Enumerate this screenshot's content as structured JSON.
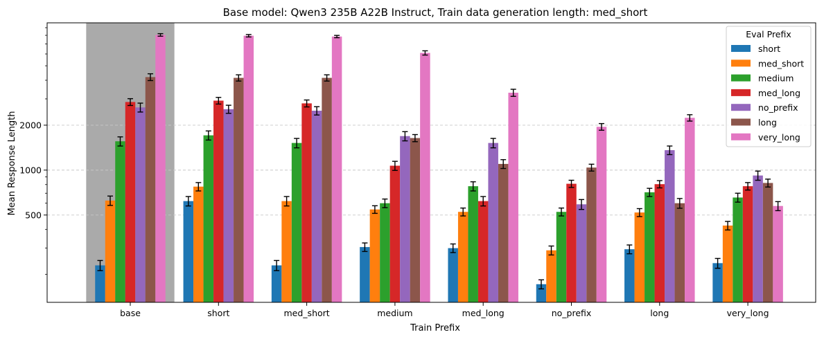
{
  "chart_data": {
    "type": "bar",
    "title": "Base model: Qwen3 235B A22B Instruct, Train data generation length: med_short",
    "xlabel": "Train Prefix",
    "ylabel": "Mean Response Length",
    "yscale": "log",
    "ylim": [
      130,
      9700
    ],
    "yticks": [
      500,
      1000,
      2000
    ],
    "yticklabels": [
      "500",
      "1000",
      "2000"
    ],
    "grid": "y-dashed",
    "highlighted_category": "base",
    "categories": [
      "base",
      "short",
      "med_short",
      "medium",
      "med_long",
      "no_prefix",
      "long",
      "very_long"
    ],
    "legend": {
      "title": "Eval Prefix",
      "location": "upper right"
    },
    "series": [
      {
        "name": "short",
        "color": "#1f77b4",
        "values": [
          230,
          620,
          230,
          305,
          300,
          172,
          295,
          238
        ],
        "errors": [
          18,
          45,
          18,
          20,
          20,
          12,
          20,
          18
        ]
      },
      {
        "name": "med_short",
        "color": "#ff7f0e",
        "values": [
          625,
          775,
          620,
          545,
          525,
          290,
          520,
          425
        ],
        "errors": [
          45,
          50,
          45,
          32,
          32,
          20,
          32,
          28
        ]
      },
      {
        "name": "medium",
        "color": "#2ca02c",
        "values": [
          1560,
          1710,
          1520,
          600,
          780,
          525,
          710,
          655
        ],
        "errors": [
          110,
          120,
          110,
          40,
          55,
          32,
          45,
          45
        ]
      },
      {
        "name": "med_long",
        "color": "#d62728",
        "values": [
          2860,
          2920,
          2800,
          1070,
          620,
          810,
          805,
          780
        ],
        "errors": [
          150,
          150,
          150,
          75,
          45,
          45,
          45,
          45
        ]
      },
      {
        "name": "no_prefix",
        "color": "#9467bd",
        "values": [
          2630,
          2560,
          2500,
          1690,
          1520,
          590,
          1360,
          920
        ],
        "errors": [
          180,
          160,
          160,
          120,
          110,
          45,
          90,
          65
        ]
      },
      {
        "name": "long",
        "color": "#8c564b",
        "values": [
          4200,
          4150,
          4150,
          1640,
          1100,
          1040,
          600,
          820
        ],
        "errors": [
          220,
          200,
          200,
          90,
          75,
          55,
          45,
          50
        ]
      },
      {
        "name": "very_long",
        "color": "#e377c2",
        "values": [
          8050,
          7950,
          7850,
          6100,
          3300,
          1950,
          2240,
          575
        ],
        "errors": [
          160,
          150,
          140,
          200,
          180,
          100,
          110,
          40
        ]
      }
    ]
  }
}
